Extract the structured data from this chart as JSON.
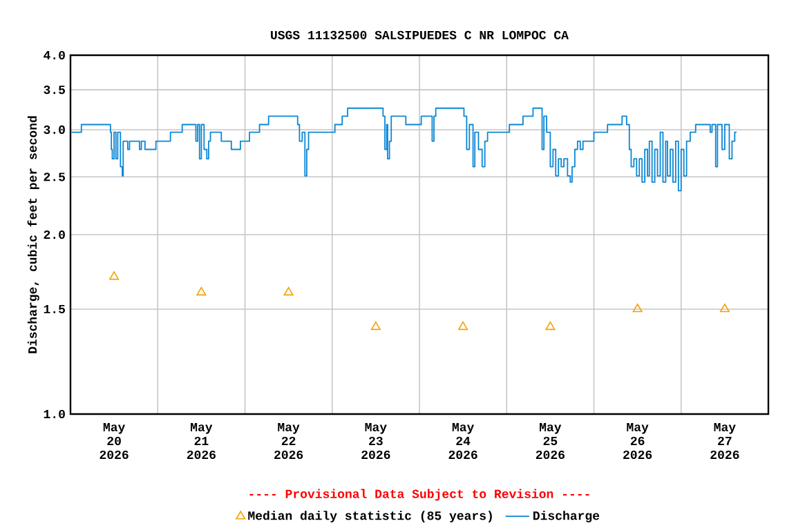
{
  "chart_data": {
    "type": "step",
    "title": "USGS 11132500 SALSIPUEDES C NR LOMPOC CA",
    "ylabel": "Discharge, cubic feet per second",
    "annotations": [
      "---- Provisional Data Subject to Revision ----"
    ],
    "log": "y",
    "grid": true,
    "legend": "bottom",
    "xlim": [
      "2026-05-20T00:00",
      "2026-05-28T00:00"
    ],
    "xticks": [
      {
        "value": "2026-05-20T00:00",
        "label": null
      },
      {
        "value": "2026-05-21T00:00",
        "label": null
      },
      {
        "value": "2026-05-22T00:00",
        "label": null
      },
      {
        "value": "2026-05-23T00:00",
        "label": null
      },
      {
        "value": "2026-05-24T00:00",
        "label": null
      },
      {
        "value": "2026-05-25T00:00",
        "label": null
      },
      {
        "value": "2026-05-26T00:00",
        "label": null
      },
      {
        "value": "2026-05-27T00:00",
        "label": null
      },
      {
        "value": "2026-05-28T00:00",
        "label": null
      },
      {
        "value": "2026-05-20T12:00",
        "label": "May 20 2026"
      },
      {
        "value": "2026-05-21T12:00",
        "label": "May 21 2026"
      },
      {
        "value": "2026-05-22T12:00",
        "label": "May 22 2026"
      },
      {
        "value": "2026-05-23T12:00",
        "label": "May 23 2026"
      },
      {
        "value": "2026-05-24T12:00",
        "label": "May 24 2026"
      },
      {
        "value": "2026-05-25T12:00",
        "label": "May 25 2026"
      },
      {
        "value": "2026-05-26T12:00",
        "label": "May 26 2026"
      },
      {
        "value": "2026-05-27T12:00",
        "label": "May 27 2026"
      }
    ],
    "ylim": [
      1.0,
      4.0
    ],
    "yticks": [
      {
        "value": 1.0,
        "label": "1.0"
      },
      1.5,
      {
        "value": 2.0,
        "label": "2.0"
      },
      2.5,
      {
        "value": 3.0,
        "label": "3.0"
      },
      3.5,
      {
        "value": 4.0,
        "label": "4.0"
      }
    ],
    "series": [
      {
        "name": "Median daily statistic (85 years)",
        "type": "scatter",
        "marker": "triangle",
        "color": "#f5a000",
        "x": [
          "2026-05-20T12:00",
          "2026-05-21T12:00",
          "2026-05-22T12:00",
          "2026-05-23T12:00",
          "2026-05-24T12:00",
          "2026-05-25T12:00",
          "2026-05-26T12:00",
          "2026-05-27T12:00"
        ],
        "values": [
          1.7,
          1.6,
          1.6,
          1.4,
          1.4,
          1.4,
          1.5,
          1.5
        ]
      },
      {
        "name": "Discharge",
        "marker": "none",
        "color": "#0a87d4",
        "x": [
          "2026-05-20T00:15",
          "2026-05-20T03:00",
          "2026-05-20T11:00",
          "2026-05-20T11:15",
          "2026-05-20T11:30",
          "2026-05-20T12:00",
          "2026-05-20T12:30",
          "2026-05-20T13:00",
          "2026-05-20T13:45",
          "2026-05-20T14:15",
          "2026-05-20T14:30",
          "2026-05-20T15:45",
          "2026-05-20T16:15",
          "2026-05-20T19:00",
          "2026-05-20T19:30",
          "2026-05-20T20:30",
          "2026-05-20T23:30",
          "2026-05-21T03:30",
          "2026-05-21T06:45",
          "2026-05-21T10:30",
          "2026-05-21T11:00",
          "2026-05-21T11:30",
          "2026-05-21T12:00",
          "2026-05-21T12:45",
          "2026-05-21T13:30",
          "2026-05-21T14:00",
          "2026-05-21T14:30",
          "2026-05-21T17:30",
          "2026-05-21T20:15",
          "2026-05-21T22:45",
          "2026-05-22T01:15",
          "2026-05-22T04:00",
          "2026-05-22T06:30",
          "2026-05-22T14:30",
          "2026-05-22T15:00",
          "2026-05-22T15:45",
          "2026-05-22T16:30",
          "2026-05-22T17:00",
          "2026-05-22T17:30",
          "2026-05-23T00:45",
          "2026-05-23T02:45",
          "2026-05-23T04:15",
          "2026-05-23T14:00",
          "2026-05-23T14:30",
          "2026-05-23T15:00",
          "2026-05-23T15:15",
          "2026-05-23T15:45",
          "2026-05-23T16:15",
          "2026-05-23T20:15",
          "2026-05-24T00:30",
          "2026-05-24T03:30",
          "2026-05-24T04:00",
          "2026-05-24T04:30",
          "2026-05-24T12:15",
          "2026-05-24T13:00",
          "2026-05-24T13:45",
          "2026-05-24T14:45",
          "2026-05-24T15:15",
          "2026-05-24T16:15",
          "2026-05-24T17:15",
          "2026-05-24T18:00",
          "2026-05-24T18:45",
          "2026-05-25T00:45",
          "2026-05-25T04:30",
          "2026-05-25T07:15",
          "2026-05-25T09:45",
          "2026-05-25T10:15",
          "2026-05-25T11:00",
          "2026-05-25T12:00",
          "2026-05-25T12:45",
          "2026-05-25T13:30",
          "2026-05-25T14:15",
          "2026-05-25T15:00",
          "2026-05-25T15:45",
          "2026-05-25T16:45",
          "2026-05-25T17:30",
          "2026-05-25T18:00",
          "2026-05-25T18:45",
          "2026-05-25T19:30",
          "2026-05-25T20:15",
          "2026-05-25T21:00",
          "2026-05-26T00:00",
          "2026-05-26T03:45",
          "2026-05-26T07:45",
          "2026-05-26T09:00",
          "2026-05-26T09:45",
          "2026-05-26T10:15",
          "2026-05-26T11:00",
          "2026-05-26T11:45",
          "2026-05-26T12:30",
          "2026-05-26T13:15",
          "2026-05-26T14:00",
          "2026-05-26T14:45",
          "2026-05-26T15:15",
          "2026-05-26T16:00",
          "2026-05-26T16:45",
          "2026-05-26T17:30",
          "2026-05-26T18:15",
          "2026-05-26T19:00",
          "2026-05-26T19:45",
          "2026-05-26T20:15",
          "2026-05-26T21:00",
          "2026-05-26T21:45",
          "2026-05-26T22:30",
          "2026-05-26T23:15",
          "2026-05-27T00:00",
          "2026-05-27T00:45",
          "2026-05-27T01:30",
          "2026-05-27T02:30",
          "2026-05-27T04:00",
          "2026-05-27T08:00",
          "2026-05-27T08:30",
          "2026-05-27T09:30",
          "2026-05-27T10:00",
          "2026-05-27T11:15",
          "2026-05-27T12:00",
          "2026-05-27T13:15",
          "2026-05-27T14:00",
          "2026-05-27T14:45",
          "2026-05-27T15:15"
        ],
        "values": [
          2.97,
          3.06,
          2.97,
          2.78,
          2.68,
          2.97,
          2.68,
          2.97,
          2.6,
          2.51,
          2.87,
          2.78,
          2.87,
          2.78,
          2.87,
          2.78,
          2.87,
          2.97,
          3.06,
          2.87,
          3.06,
          2.68,
          3.06,
          2.78,
          2.68,
          2.87,
          2.97,
          2.87,
          2.78,
          2.87,
          2.97,
          3.06,
          3.16,
          3.06,
          2.87,
          2.97,
          2.51,
          2.78,
          2.97,
          3.06,
          3.16,
          3.26,
          3.16,
          2.78,
          3.06,
          2.68,
          2.87,
          3.16,
          3.06,
          3.16,
          2.87,
          3.16,
          3.26,
          3.16,
          2.78,
          3.06,
          2.6,
          2.97,
          2.78,
          2.6,
          2.87,
          2.97,
          3.06,
          3.16,
          3.26,
          2.78,
          3.16,
          2.97,
          2.6,
          2.78,
          2.51,
          2.68,
          2.6,
          2.68,
          2.51,
          2.45,
          2.6,
          2.78,
          2.87,
          2.78,
          2.87,
          2.97,
          3.06,
          3.16,
          3.06,
          2.78,
          2.6,
          2.68,
          2.51,
          2.68,
          2.45,
          2.78,
          2.51,
          2.87,
          2.45,
          2.78,
          2.51,
          2.97,
          2.45,
          2.87,
          2.51,
          2.78,
          2.45,
          2.87,
          2.37,
          2.78,
          2.51,
          2.87,
          2.97,
          3.06,
          2.97,
          3.06,
          2.6,
          3.06,
          2.78,
          3.06,
          2.68,
          2.87,
          2.97,
          2.97
        ]
      }
    ]
  }
}
